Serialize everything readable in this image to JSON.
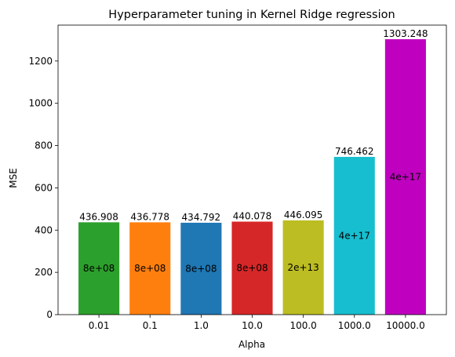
{
  "chart_data": {
    "type": "bar",
    "title": "Hyperparameter tuning in Kernel Ridge regression",
    "xlabel": "Alpha",
    "ylabel": "MSE",
    "ylim": [
      0,
      1370
    ],
    "yticks": [
      0,
      200,
      400,
      600,
      800,
      1000,
      1200
    ],
    "grid": false,
    "categories": [
      "0.01",
      "0.1",
      "1.0",
      "10.0",
      "100.0",
      "1000.0",
      "10000.0"
    ],
    "values": [
      436.908,
      436.778,
      434.792,
      440.078,
      446.095,
      746.462,
      1303.248
    ],
    "value_labels": [
      "436.908",
      "436.778",
      "434.792",
      "440.078",
      "446.095",
      "746.462",
      "1303.248"
    ],
    "inner_labels": [
      "8e+08",
      "8e+08",
      "8e+08",
      "8e+08",
      "2e+13",
      "4e+17",
      "4e+17"
    ],
    "colors": [
      "#2ca02c",
      "#ff7f0e",
      "#1f77b4",
      "#d62728",
      "#bcbd22",
      "#17becf",
      "#bf00bf"
    ]
  }
}
